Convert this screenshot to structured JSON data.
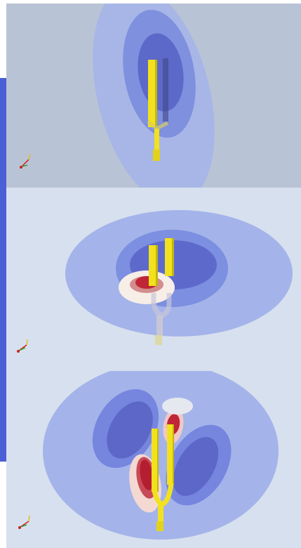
{
  "app": {
    "name": ""
  },
  "panels": [
    {
      "id": "mode-1",
      "icon": "xyz-axes-triad-icon"
    },
    {
      "id": "mode-2",
      "icon": "xyz-axes-triad-icon"
    },
    {
      "id": "mode-3",
      "icon": "xyz-axes-triad-icon"
    }
  ],
  "colors": {
    "sidebar": "#4b5fd6",
    "panel1_bg": "#b9c3d6",
    "panel_bg": "#d7e0ee",
    "field_light_blue": "#9fb2ea",
    "field_mid_blue": "#7c8fe0",
    "field_dark_blue": "#5a65c8",
    "field_red": "#c8283a",
    "fork_yellow": "#f0e020"
  }
}
